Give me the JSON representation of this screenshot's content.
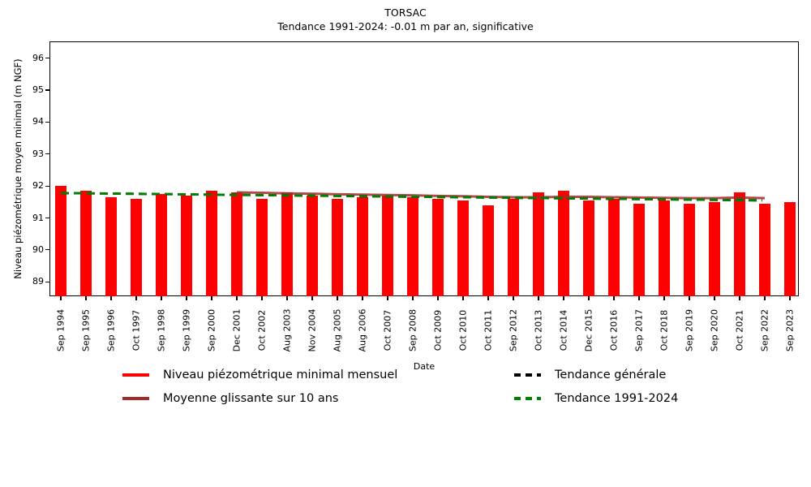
{
  "chart_data": {
    "type": "bar",
    "title": "TORSAC",
    "subtitle": "Tendance 1991-2024: -0.01 m par an, significative",
    "xlabel": "Date",
    "ylabel": "Niveau piézométrique moyen minimal (m NGF)",
    "ylim": [
      88.55,
      96.5
    ],
    "yticks": [
      89,
      90,
      91,
      92,
      93,
      94,
      95,
      96
    ],
    "grid": false,
    "legend_position": "below-two-columns",
    "categories": [
      "Sep 1994",
      "Sep 1995",
      "Sep 1996",
      "Oct 1997",
      "Sep 1998",
      "Sep 1999",
      "Sep 2000",
      "Dec 2001",
      "Oct 2002",
      "Aug 2003",
      "Nov 2004",
      "Aug 2005",
      "Aug 2006",
      "Oct 2007",
      "Sep 2008",
      "Oct 2009",
      "Oct 2010",
      "Oct 2011",
      "Sep 2012",
      "Oct 2013",
      "Oct 2014",
      "Dec 2015",
      "Oct 2016",
      "Sep 2017",
      "Oct 2018",
      "Sep 2019",
      "Sep 2020",
      "Oct 2021",
      "Sep 2022",
      "Sep 2023"
    ],
    "series": [
      {
        "name": "Niveau piézométrique minimal mensuel",
        "type": "bar",
        "color": "#ff0000",
        "values": [
          92.0,
          91.85,
          91.65,
          91.6,
          91.75,
          91.7,
          91.85,
          91.8,
          91.6,
          91.8,
          91.7,
          91.6,
          91.65,
          91.7,
          91.65,
          91.6,
          91.55,
          91.4,
          91.6,
          91.8,
          91.85,
          91.55,
          91.6,
          91.45,
          91.55,
          91.45,
          91.5,
          91.8,
          91.45,
          91.5
        ]
      },
      {
        "name": "Moyenne glissante sur 10 ans",
        "type": "line",
        "color": "#a52a2a",
        "start_index": 7,
        "values": [
          91.8,
          91.79,
          91.77,
          91.76,
          91.74,
          91.73,
          91.72,
          91.71,
          91.69,
          91.68,
          91.66,
          91.65,
          91.65,
          91.66,
          91.66,
          91.65,
          91.64,
          91.63,
          91.62,
          91.62,
          91.64,
          91.62
        ]
      },
      {
        "name": "Tendance générale",
        "type": "trend",
        "style": "dashed",
        "color": "#000000",
        "x_start_index": 0,
        "x_end_index": 27.9,
        "y_start": 91.78,
        "y_end": 91.55
      },
      {
        "name": "Tendance 1991-2024",
        "type": "trend",
        "style": "dashed",
        "color": "#008000",
        "x_start_index": 0,
        "x_end_index": 27.9,
        "y_start": 91.78,
        "y_end": 91.55
      }
    ],
    "legend": {
      "items": [
        {
          "label": "Niveau piézométrique minimal mensuel",
          "color": "#ff0000",
          "style": "solid"
        },
        {
          "label": "Moyenne glissante sur 10 ans",
          "color": "#a52a2a",
          "style": "solid"
        },
        {
          "label": "Tendance générale",
          "color": "#000000",
          "style": "dashed"
        },
        {
          "label": "Tendance 1991-2024",
          "color": "#008000",
          "style": "dashed"
        }
      ]
    }
  }
}
